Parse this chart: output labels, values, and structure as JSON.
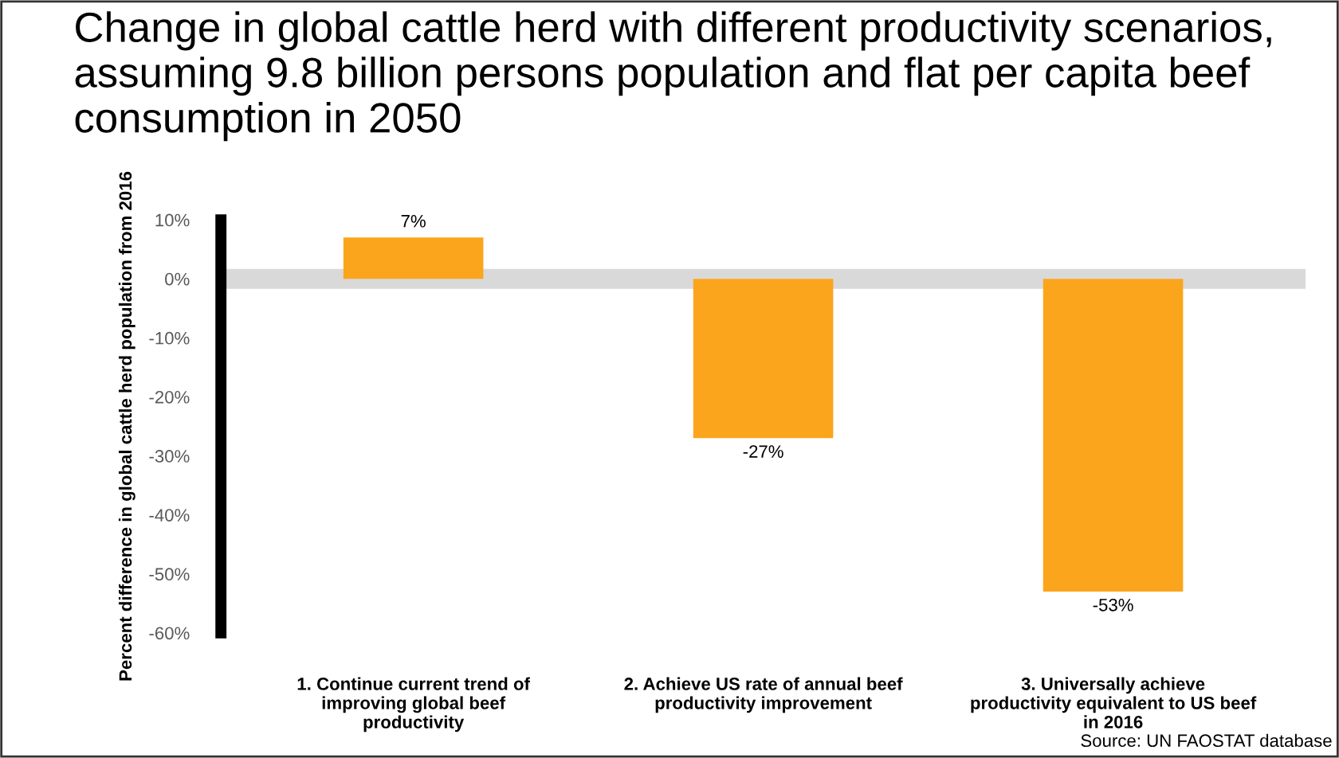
{
  "chart_data": {
    "type": "bar",
    "title": "Change in global cattle herd with different productivity scenarios, assuming 9.8 billion persons population and flat per capita beef consumption in 2050",
    "ylabel": "Percent difference in global cattle herd population from 2016",
    "categories": [
      "1. Continue current trend of improving global beef productivity",
      "2. Achieve US rate of annual beef productivity improvement",
      "3. Universally achieve productivity equivalent to US beef in 2016"
    ],
    "values": [
      7,
      -27,
      -53
    ],
    "value_labels": [
      "7%",
      "-27%",
      "-53%"
    ],
    "color": "#fba51c",
    "ylim": [
      -60,
      10
    ],
    "yticks": [
      {
        "value": 10,
        "label": "10%"
      },
      {
        "value": 0,
        "label": "0%"
      },
      {
        "value": -10,
        "label": "-10%"
      },
      {
        "value": -20,
        "label": "-20%"
      },
      {
        "value": -30,
        "label": "-30%"
      },
      {
        "value": -40,
        "label": "-40%"
      },
      {
        "value": -50,
        "label": "-50%"
      },
      {
        "value": -60,
        "label": "-60%"
      }
    ],
    "ref_lines": [
      {
        "axis": "y",
        "value": 0,
        "color": "#d9d9d9"
      }
    ],
    "annotations": [
      "Source: UN FAOSTAT database"
    ],
    "grid": false,
    "legend": false
  }
}
